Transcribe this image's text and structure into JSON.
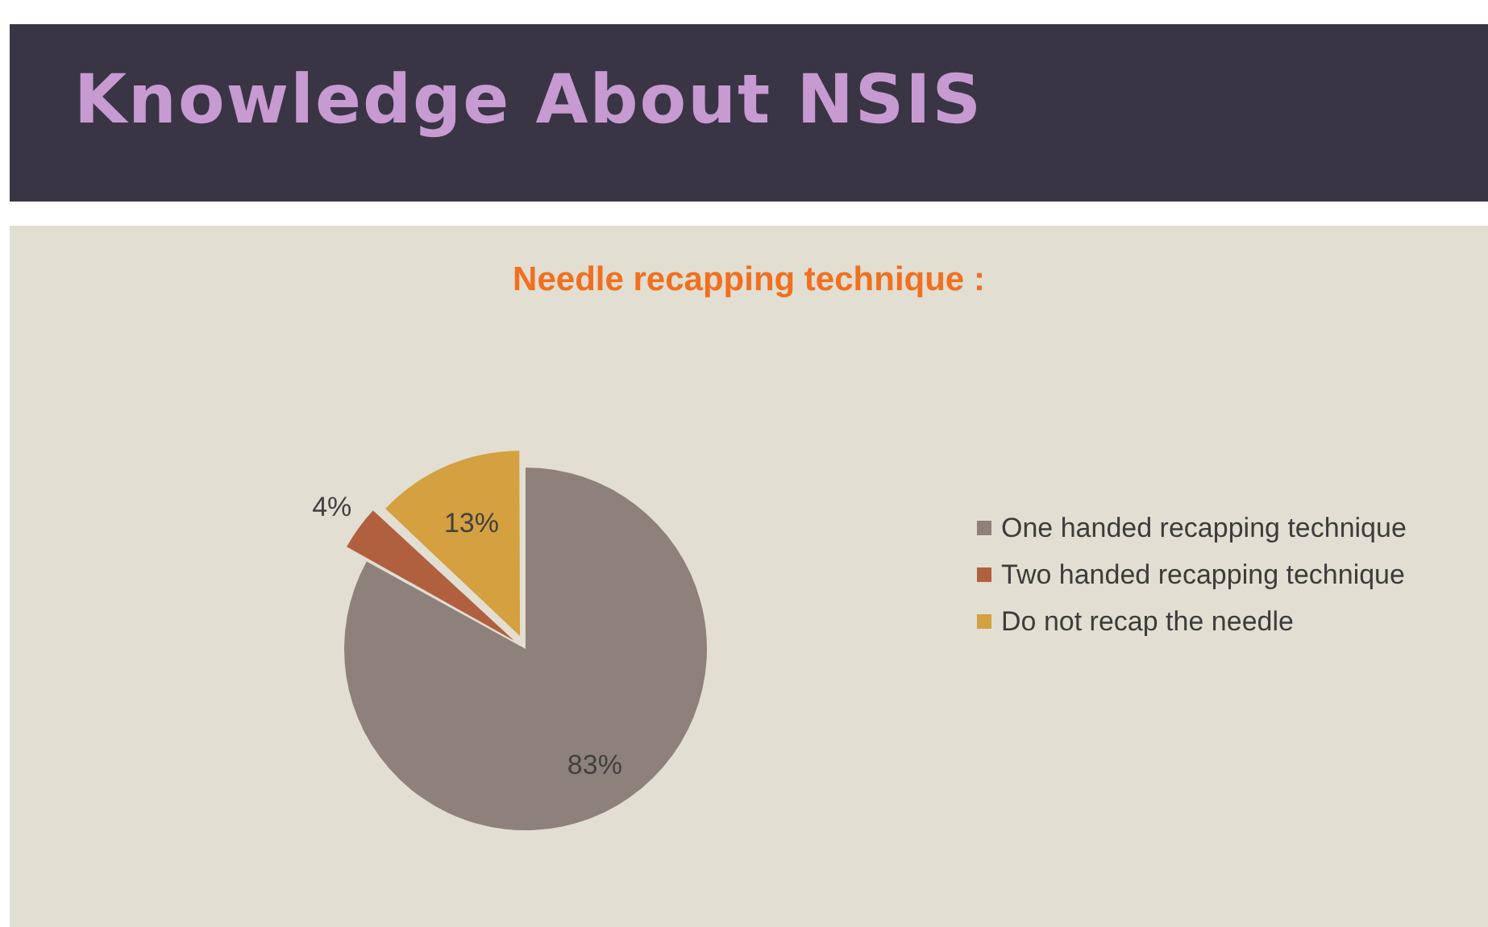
{
  "chart_data": {
    "type": "pie",
    "title": "Knowledge About NSIS",
    "subtitle": "Needle recapping technique :",
    "categories": [
      "One handed recapping technique",
      "Two handed recapping technique",
      "Do not recap the needle"
    ],
    "values": [
      83,
      4,
      13
    ],
    "colors": [
      "#8e817b",
      "#b0603f",
      "#d4a040"
    ],
    "value_labels": [
      "83%",
      "4%",
      "13%"
    ],
    "legend": "right"
  }
}
